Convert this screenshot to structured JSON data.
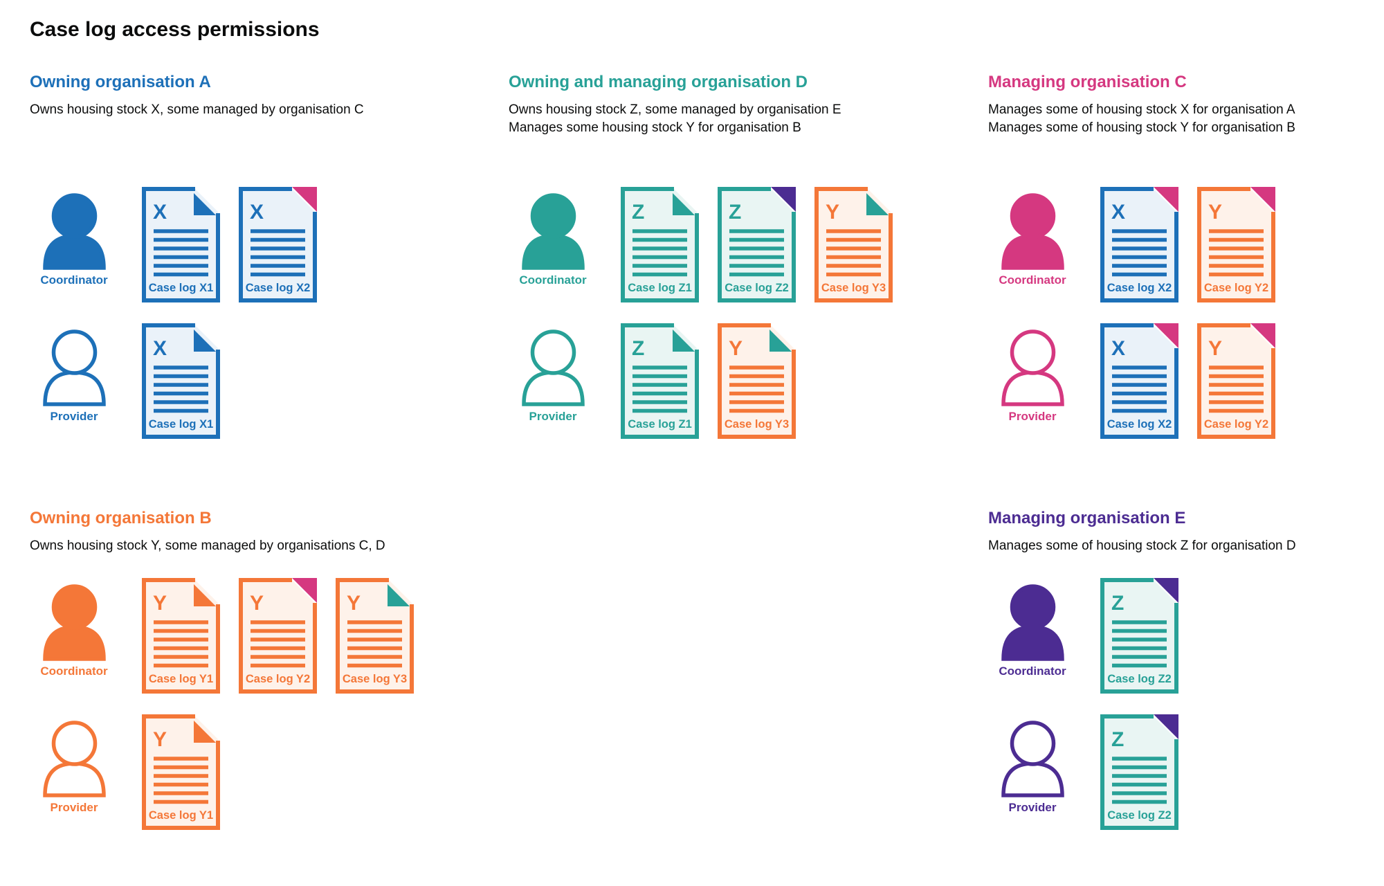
{
  "title": "Case log access permissions",
  "colors": {
    "blue": "#1d70b8",
    "teal": "#28a197",
    "pink": "#d53880",
    "orange": "#f47738",
    "purple": "#4c2c92",
    "text": "#0b0c0c",
    "tint_blue": "#eaf2f9",
    "tint_teal": "#e9f5f3",
    "tint_orange": "#fef2ea",
    "white": "#ffffff"
  },
  "sections": [
    {
      "id": "A",
      "heading": "Owning organisation A",
      "color": "blue",
      "description_lines": [
        "Owns housing stock X, some managed by organisation C"
      ],
      "rows": [
        {
          "role": "Coordinator",
          "person": "filled",
          "docs": [
            {
              "letter": "X",
              "label": "Case log X1",
              "doc_color": "blue",
              "fold_color": "blue",
              "fold_style": "dogear"
            },
            {
              "letter": "X",
              "label": "Case log X2",
              "doc_color": "blue",
              "fold_color": "pink",
              "fold_style": "corner"
            }
          ]
        },
        {
          "role": "Provider",
          "person": "outline",
          "docs": [
            {
              "letter": "X",
              "label": "Case log X1",
              "doc_color": "blue",
              "fold_color": "blue",
              "fold_style": "dogear"
            }
          ]
        }
      ]
    },
    {
      "id": "D",
      "heading": "Owning and managing organisation D",
      "color": "teal",
      "description_lines": [
        "Owns housing stock Z, some managed by organisation E",
        "Manages some housing stock Y for organisation B"
      ],
      "rows": [
        {
          "role": "Coordinator",
          "person": "filled",
          "docs": [
            {
              "letter": "Z",
              "label": "Case log Z1",
              "doc_color": "teal",
              "fold_color": "teal",
              "fold_style": "dogear"
            },
            {
              "letter": "Z",
              "label": "Case log Z2",
              "doc_color": "teal",
              "fold_color": "purple",
              "fold_style": "corner"
            },
            {
              "letter": "Y",
              "label": "Case log Y3",
              "doc_color": "orange",
              "fold_color": "teal",
              "fold_style": "dogear"
            }
          ]
        },
        {
          "role": "Provider",
          "person": "outline",
          "docs": [
            {
              "letter": "Z",
              "label": "Case log Z1",
              "doc_color": "teal",
              "fold_color": "teal",
              "fold_style": "dogear"
            },
            {
              "letter": "Y",
              "label": "Case log Y3",
              "doc_color": "orange",
              "fold_color": "teal",
              "fold_style": "dogear"
            }
          ]
        }
      ]
    },
    {
      "id": "C",
      "heading": "Managing organisation C",
      "color": "pink",
      "description_lines": [
        "Manages some of housing stock X for organisation A",
        "Manages some of housing stock Y for organisation B"
      ],
      "rows": [
        {
          "role": "Coordinator",
          "person": "filled",
          "docs": [
            {
              "letter": "X",
              "label": "Case log X2",
              "doc_color": "blue",
              "fold_color": "pink",
              "fold_style": "corner"
            },
            {
              "letter": "Y",
              "label": "Case log Y2",
              "doc_color": "orange",
              "fold_color": "pink",
              "fold_style": "corner"
            }
          ]
        },
        {
          "role": "Provider",
          "person": "outline",
          "docs": [
            {
              "letter": "X",
              "label": "Case log X2",
              "doc_color": "blue",
              "fold_color": "pink",
              "fold_style": "corner"
            },
            {
              "letter": "Y",
              "label": "Case log Y2",
              "doc_color": "orange",
              "fold_color": "pink",
              "fold_style": "corner"
            }
          ]
        }
      ]
    },
    {
      "id": "B",
      "heading": "Owning organisation B",
      "color": "orange",
      "description_lines": [
        "Owns housing stock Y, some managed by organisations C, D"
      ],
      "rows": [
        {
          "role": "Coordinator",
          "person": "filled",
          "docs": [
            {
              "letter": "Y",
              "label": "Case log Y1",
              "doc_color": "orange",
              "fold_color": "orange",
              "fold_style": "dogear"
            },
            {
              "letter": "Y",
              "label": "Case log Y2",
              "doc_color": "orange",
              "fold_color": "pink",
              "fold_style": "corner"
            },
            {
              "letter": "Y",
              "label": "Case log Y3",
              "doc_color": "orange",
              "fold_color": "teal",
              "fold_style": "dogear"
            }
          ]
        },
        {
          "role": "Provider",
          "person": "outline",
          "docs": [
            {
              "letter": "Y",
              "label": "Case log Y1",
              "doc_color": "orange",
              "fold_color": "orange",
              "fold_style": "dogear"
            }
          ]
        }
      ]
    },
    {
      "id": "E",
      "heading": "Managing organisation E",
      "color": "purple",
      "description_lines": [
        "Manages some of housing stock Z for organisation D"
      ],
      "rows": [
        {
          "role": "Coordinator",
          "person": "filled",
          "docs": [
            {
              "letter": "Z",
              "label": "Case log Z2",
              "doc_color": "teal",
              "fold_color": "purple",
              "fold_style": "corner"
            }
          ]
        },
        {
          "role": "Provider",
          "person": "outline",
          "docs": [
            {
              "letter": "Z",
              "label": "Case log Z2",
              "doc_color": "teal",
              "fold_color": "purple",
              "fold_style": "corner"
            }
          ]
        }
      ]
    }
  ]
}
